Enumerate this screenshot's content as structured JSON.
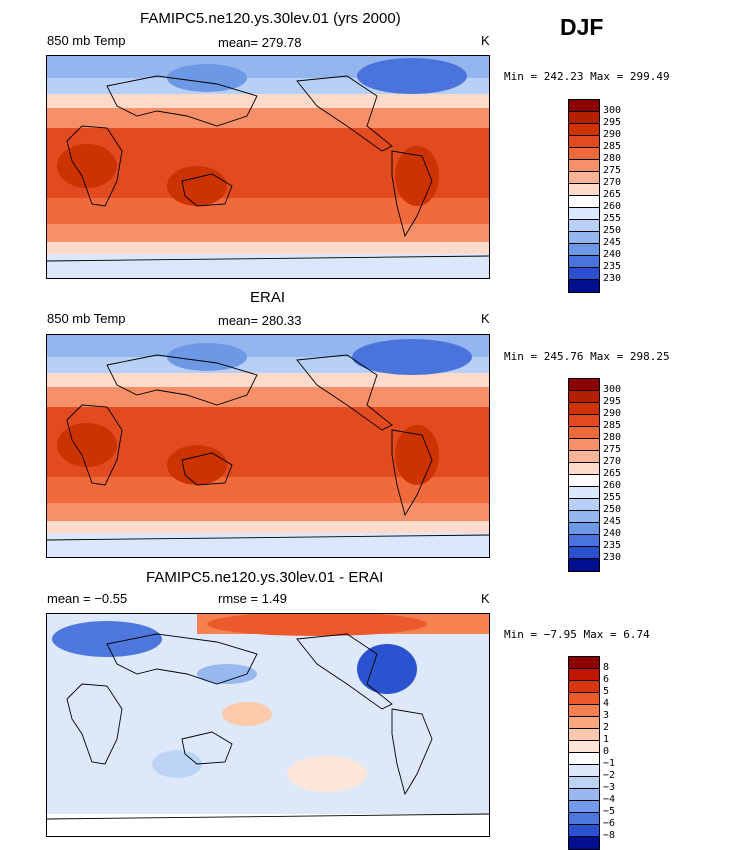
{
  "season": "DJF",
  "panels": [
    {
      "title": "FAMIPC5.ne120.ys.30lev.01 (yrs 2000)",
      "left_label": "850 mb Temp",
      "center_label": "mean= 279.78",
      "units": "K",
      "minmax": "Min = 242.23 Max = 299.49",
      "colorbar_labels": [
        "300",
        "295",
        "290",
        "285",
        "280",
        "275",
        "270",
        "265",
        "260",
        "255",
        "250",
        "245",
        "240",
        "235",
        "230"
      ]
    },
    {
      "title": "ERAI",
      "left_label": "850 mb Temp",
      "center_label": "mean= 280.33",
      "units": "K",
      "minmax": "Min = 245.76 Max = 298.25",
      "colorbar_labels": [
        "300",
        "295",
        "290",
        "285",
        "280",
        "275",
        "270",
        "265",
        "260",
        "255",
        "250",
        "245",
        "240",
        "235",
        "230"
      ]
    },
    {
      "title": "FAMIPC5.ne120.ys.30lev.01 - ERAI",
      "left_label": "mean =  −0.55",
      "center_label": "rmse =    1.49",
      "units": "K",
      "minmax": "Min =  −7.95 Max =   6.74",
      "colorbar_labels": [
        "8",
        "6",
        "5",
        "4",
        "3",
        "2",
        "1",
        "0",
        "−1",
        "−2",
        "−3",
        "−4",
        "−5",
        "−6",
        "−8"
      ]
    }
  ],
  "colors": {
    "scale": [
      "#8b0000",
      "#b22000",
      "#cc3300",
      "#e24a1f",
      "#f06a3c",
      "#f79068",
      "#fbb596",
      "#fddac9",
      "#ffffff",
      "#dbe8fb",
      "#b8d0f5",
      "#93b6ef",
      "#6d98e6",
      "#4a74db",
      "#2b50cf",
      "#1530b8",
      "#000f8f"
    ],
    "diff_scale": [
      "#8b0000",
      "#c01500",
      "#d83512",
      "#ec5a2c",
      "#f4814f",
      "#f9a77c",
      "#fcc9ab",
      "#fde6d8",
      "#ffffff",
      "#dde9fb",
      "#bcd3f6",
      "#97b9f0",
      "#729ce7",
      "#4d77dc",
      "#2b52cf",
      "#1531b8",
      "#000f8f"
    ],
    "land_outline": "#000000"
  }
}
